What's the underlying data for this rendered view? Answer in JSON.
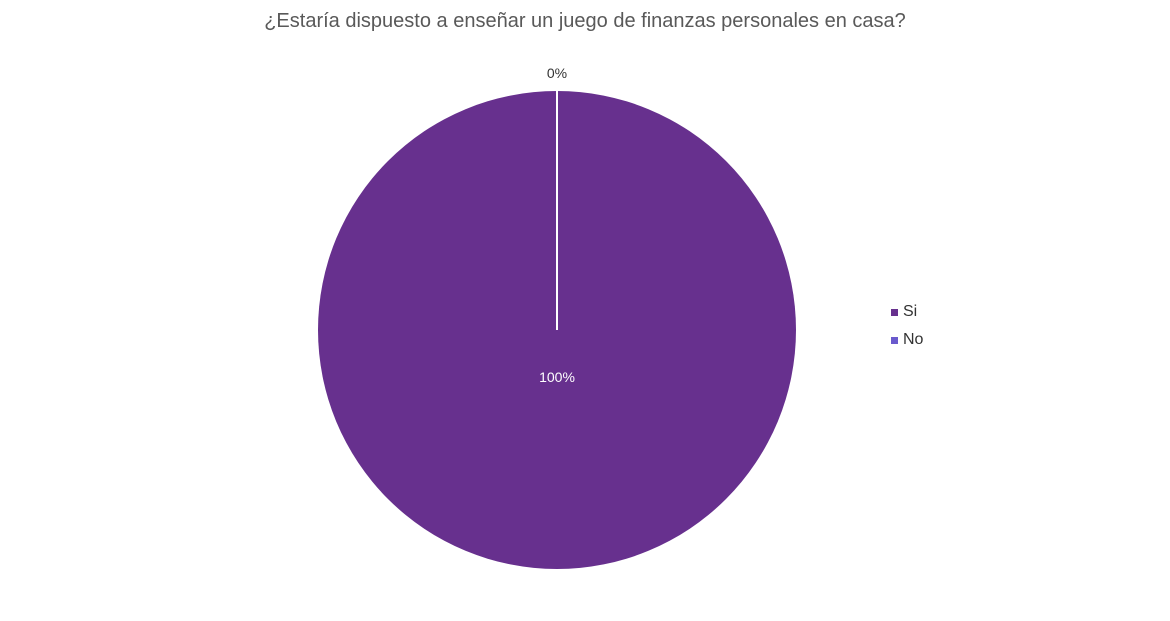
{
  "chart_data": {
    "type": "pie",
    "title": "¿Estaría dispuesto a enseñar un juego de finanzas personales en casa?",
    "categories": [
      "Si",
      "No"
    ],
    "values": [
      100,
      0
    ],
    "data_labels": [
      "100%",
      "0%"
    ],
    "colors": [
      "#67308e",
      "#6a5acd"
    ],
    "legend": "right",
    "slice_border_color": "#ffffff"
  }
}
